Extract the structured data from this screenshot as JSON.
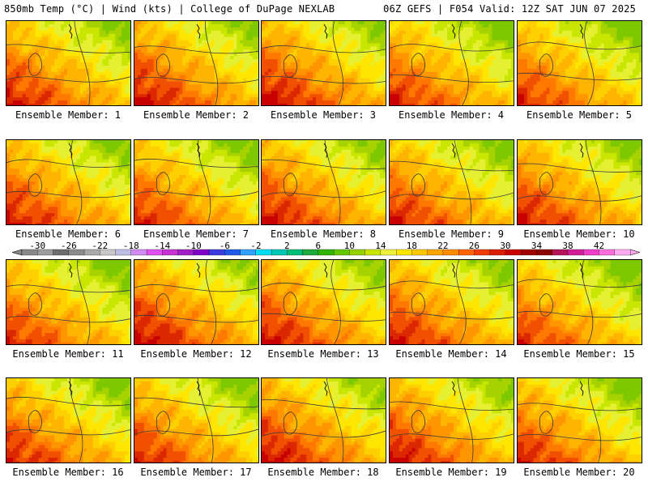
{
  "header": {
    "left_title": "850mb Temp (°C) | Wind (kts) | College of DuPage NEXLAB",
    "right_title": "06Z GEFS | F054 Valid: 12Z SAT JUN 07 2025"
  },
  "panels": [
    {
      "label": "Ensemble Member: 1",
      "warmth": 0.55
    },
    {
      "label": "Ensemble Member: 2",
      "warmth": 0.6
    },
    {
      "label": "Ensemble Member: 3",
      "warmth": 0.62
    },
    {
      "label": "Ensemble Member: 4",
      "warmth": 0.5
    },
    {
      "label": "Ensemble Member: 5",
      "warmth": 0.48
    },
    {
      "label": "Ensemble Member: 6",
      "warmth": 0.55
    },
    {
      "label": "Ensemble Member: 7",
      "warmth": 0.5
    },
    {
      "label": "Ensemble Member: 8",
      "warmth": 0.58
    },
    {
      "label": "Ensemble Member: 9",
      "warmth": 0.52
    },
    {
      "label": "Ensemble Member: 10",
      "warmth": 0.55
    },
    {
      "label": "Ensemble Member: 11",
      "warmth": 0.48
    },
    {
      "label": "Ensemble Member: 12",
      "warmth": 0.62
    },
    {
      "label": "Ensemble Member: 13",
      "warmth": 0.58
    },
    {
      "label": "Ensemble Member: 14",
      "warmth": 0.55
    },
    {
      "label": "Ensemble Member: 15",
      "warmth": 0.45
    },
    {
      "label": "Ensemble Member: 16",
      "warmth": 0.52
    },
    {
      "label": "Ensemble Member: 17",
      "warmth": 0.5
    },
    {
      "label": "Ensemble Member: 18",
      "warmth": 0.6
    },
    {
      "label": "Ensemble Member: 19",
      "warmth": 0.58
    },
    {
      "label": "Ensemble Member: 20",
      "warmth": 0.5
    }
  ],
  "colorbar": {
    "tick_labels": [
      "-30",
      "-26",
      "-22",
      "-18",
      "-14",
      "-10",
      "-6",
      "-2",
      "2",
      "6",
      "10",
      "14",
      "18",
      "22",
      "26",
      "30",
      "34",
      "38",
      "42"
    ],
    "colors": [
      "#888888",
      "#9e9e9e",
      "#6e6e6e",
      "#8c8c8c",
      "#a9a9a9",
      "#c8c8c8",
      "#bfbfe6",
      "#d08cf0",
      "#e050f0",
      "#c832d2",
      "#a020c8",
      "#7f00c8",
      "#3c3cdc",
      "#1e5ae6",
      "#32a0ff",
      "#00dcf0",
      "#00c8b4",
      "#00be78",
      "#1eaa3c",
      "#32b400",
      "#64c800",
      "#96d200",
      "#c8e600",
      "#f0f03c",
      "#ffe600",
      "#ffc800",
      "#ffa500",
      "#ff8c00",
      "#ff6400",
      "#f03c00",
      "#dc1e00",
      "#c80000",
      "#a00000",
      "#8c0000",
      "#b4145a",
      "#d21e96",
      "#f03cc8",
      "#ff6edc",
      "#ffaaf0"
    ]
  }
}
